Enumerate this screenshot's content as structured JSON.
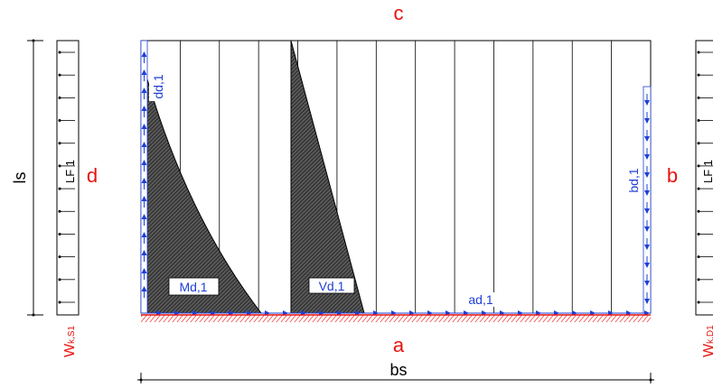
{
  "labels": {
    "edge_top": "c",
    "edge_bottom": "a",
    "edge_left": "d",
    "edge_right": "b",
    "dim_height": "ls",
    "dim_width": "bs",
    "lf_left": "LF 1",
    "lf_right": "LF 1",
    "w_left": "Wk,S1",
    "w_left_main": "W",
    "w_left_sub": "k,S1",
    "w_right": "Wk,D1",
    "w_right_main": "W",
    "w_right_sub": "k,D1",
    "md": "Md,1",
    "vd": "Vd,1",
    "ad": "ad,1",
    "bd": "bd,1",
    "dd": "dd,1"
  },
  "colors": {
    "edge_label": "#e8130f",
    "flow_arrow": "#1f3fd6",
    "hatch": "#2a2a2a",
    "line": "#000000",
    "support_hatch": "#e8130f"
  },
  "layout_info": {
    "panel_count": 13,
    "load_ticks": 12
  }
}
